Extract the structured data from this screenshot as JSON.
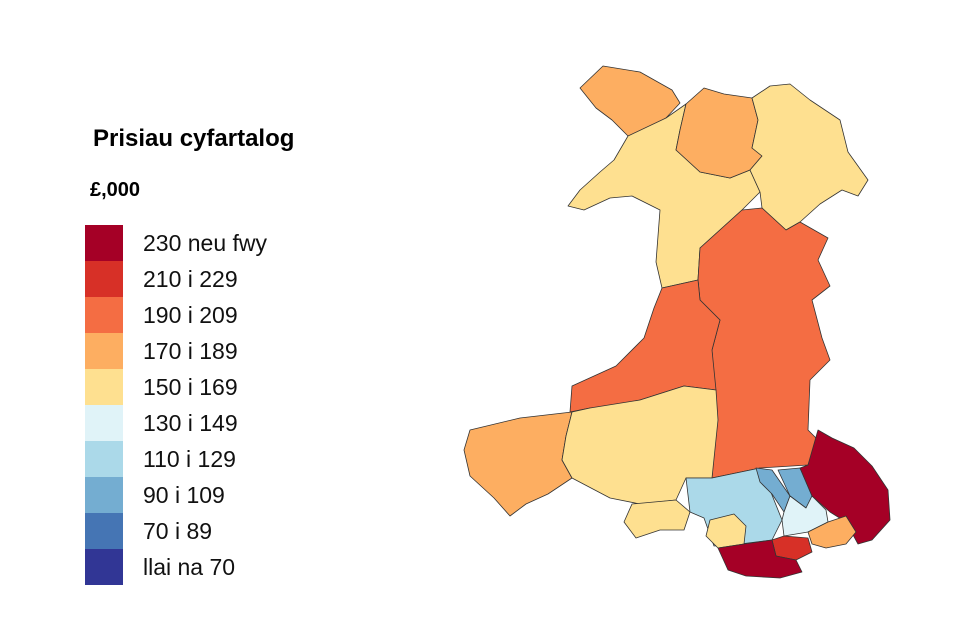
{
  "legend": {
    "title": "Prisiau cyfartalog",
    "unit": "£,000",
    "items": [
      {
        "label": "230 neu fwy",
        "color": "#a50026"
      },
      {
        "label": "210 i 229",
        "color": "#d73027"
      },
      {
        "label": "190 i 209",
        "color": "#f46d43"
      },
      {
        "label": "170 i 189",
        "color": "#fdae61"
      },
      {
        "label": "150 i 169",
        "color": "#fee090"
      },
      {
        "label": "130 i 149",
        "color": "#e0f3f8"
      },
      {
        "label": "110 i 129",
        "color": "#abd9e9"
      },
      {
        "label": "90 i 109",
        "color": "#74add1"
      },
      {
        "label": "70 i 89",
        "color": "#4575b4"
      },
      {
        "label": "llai na 70",
        "color": "#313695"
      }
    ]
  }
}
